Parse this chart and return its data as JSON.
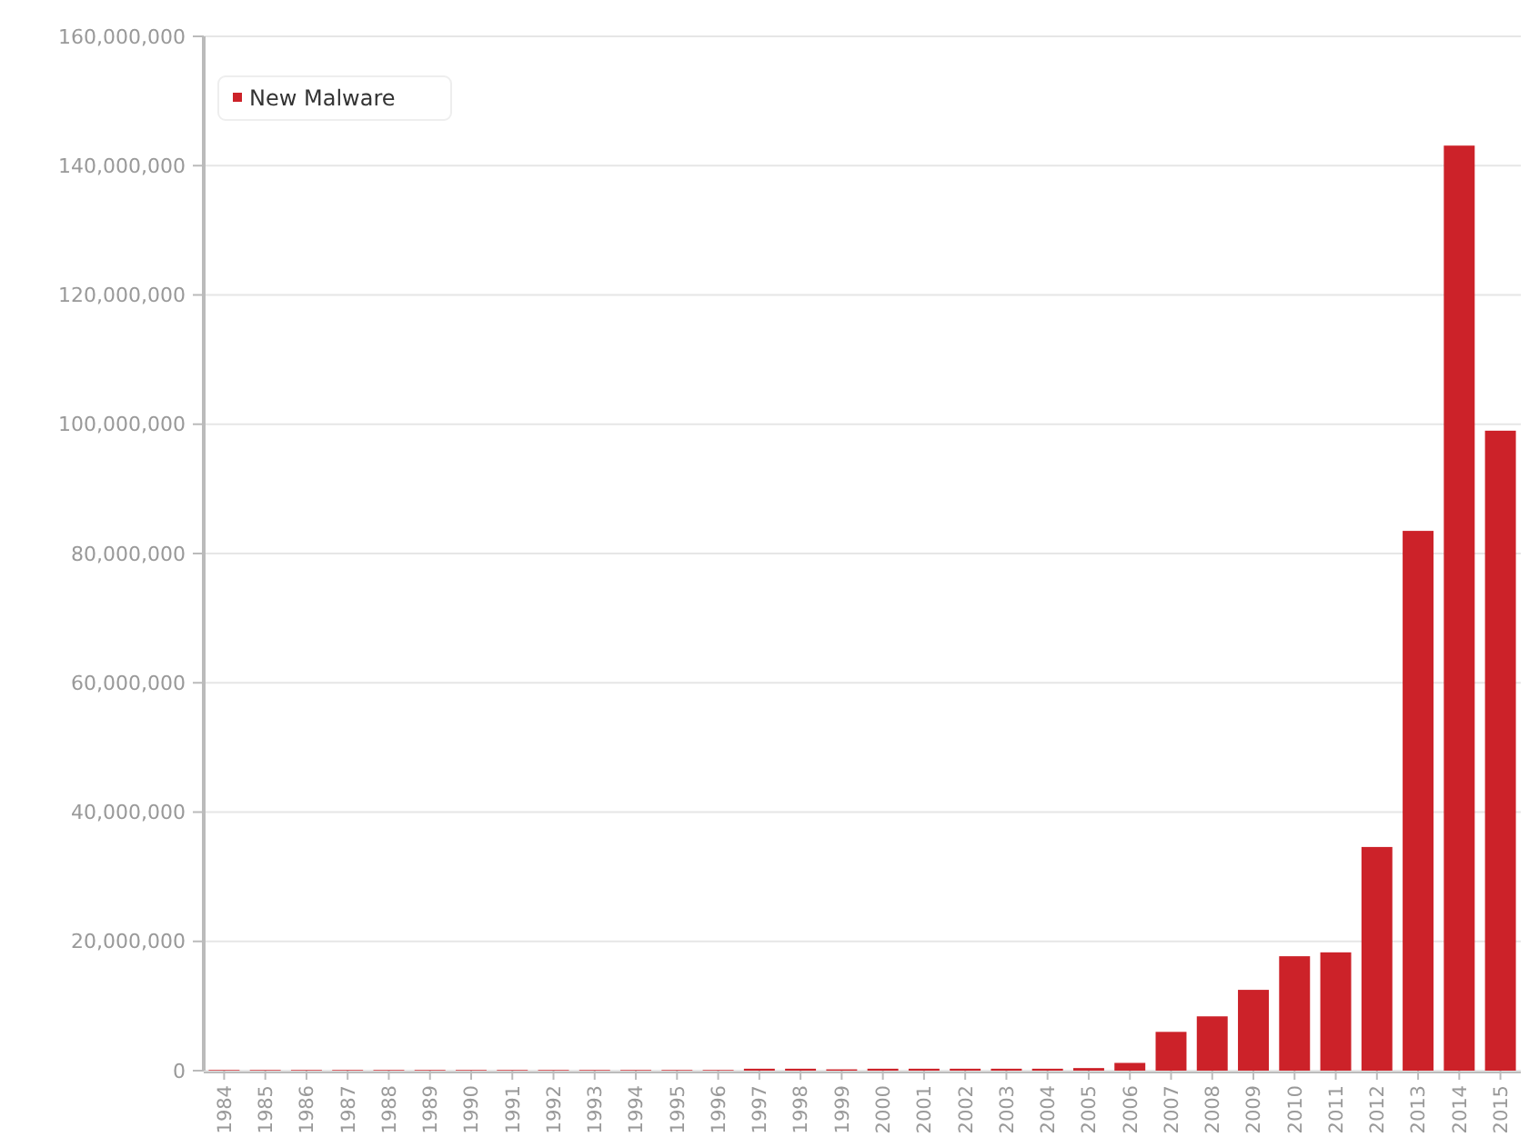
{
  "chart_data": {
    "type": "bar",
    "categories": [
      "1984",
      "1985",
      "1986",
      "1987",
      "1988",
      "1989",
      "1990",
      "1991",
      "1992",
      "1993",
      "1994",
      "1995",
      "1996",
      "1997",
      "1998",
      "1999",
      "2000",
      "2001",
      "2002",
      "2003",
      "2004",
      "2005",
      "2006",
      "2007",
      "2008",
      "2009",
      "2010",
      "2011",
      "2012",
      "2013",
      "2014",
      "2015"
    ],
    "series": [
      {
        "name": "New Malware",
        "color": "#cc2229",
        "values": [
          100000,
          100000,
          100000,
          100000,
          100000,
          100000,
          100000,
          100000,
          100000,
          100000,
          100000,
          100000,
          100000,
          300000,
          300000,
          200000,
          300000,
          300000,
          300000,
          300000,
          300000,
          400000,
          1200000,
          6000000,
          8400000,
          12500000,
          17700000,
          18300000,
          34600000,
          83500000,
          143100000,
          99000000
        ]
      }
    ],
    "ylim": [
      0,
      160000000
    ],
    "yticks": [
      {
        "value": 0,
        "label": "0"
      },
      {
        "value": 20000000,
        "label": "20,000,000"
      },
      {
        "value": 40000000,
        "label": "40,000,000"
      },
      {
        "value": 60000000,
        "label": "60,000,000"
      },
      {
        "value": 80000000,
        "label": "80,000,000"
      },
      {
        "value": 100000000,
        "label": "100,000,000"
      },
      {
        "value": 120000000,
        "label": "120,000,000"
      },
      {
        "value": 140000000,
        "label": "140,000,000"
      },
      {
        "value": 160000000,
        "label": "160,000,000"
      }
    ],
    "grid": "y",
    "legend": "top left"
  }
}
